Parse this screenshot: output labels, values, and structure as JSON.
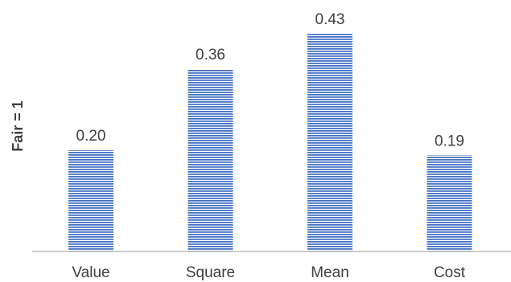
{
  "chart_data": {
    "type": "bar",
    "categories": [
      "Value",
      "Square",
      "Mean",
      "Cost"
    ],
    "values": [
      0.2,
      0.36,
      0.43,
      0.19
    ],
    "value_labels": [
      "0.20",
      "0.36",
      "0.43",
      "0.19"
    ],
    "ylabel": "Fair = 1",
    "ylim": [
      0,
      0.5
    ],
    "grid": false,
    "legend": "none",
    "bar_fill": "horizontal-stripes",
    "colors": {
      "bar_stripe": "#4472c4",
      "bar_gap": "#ffffff",
      "axis_line": "#bfbfbf",
      "text": "#404040"
    }
  }
}
